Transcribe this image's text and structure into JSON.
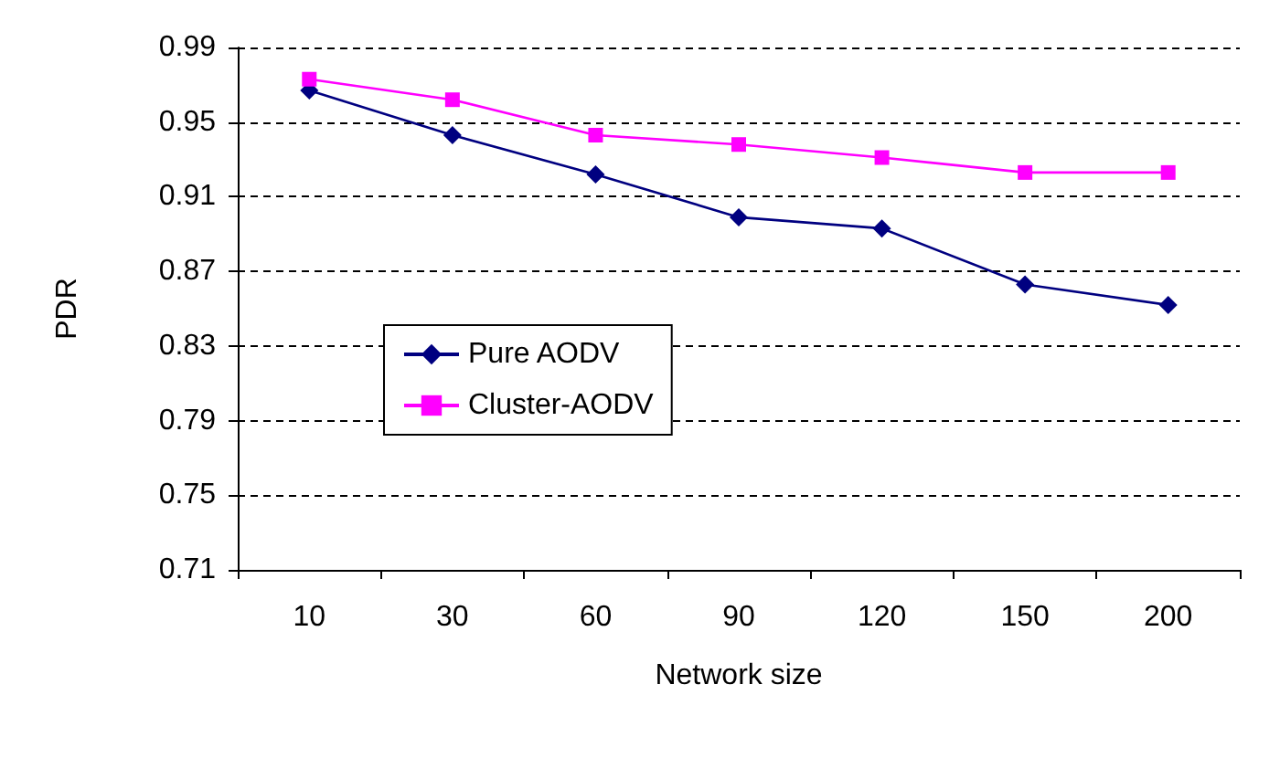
{
  "chart_data": {
    "type": "line",
    "xlabel": "Network size",
    "ylabel": "PDR",
    "categories": [
      "10",
      "30",
      "60",
      "90",
      "120",
      "150",
      "200"
    ],
    "series": [
      {
        "name": "Pure AODV",
        "color": "#000080",
        "marker": "diamond",
        "values": [
          0.967,
          0.943,
          0.922,
          0.899,
          0.893,
          0.863,
          0.852
        ]
      },
      {
        "name": "Cluster-AODV",
        "color": "#ff00ff",
        "marker": "square",
        "values": [
          0.973,
          0.962,
          0.943,
          0.938,
          0.931,
          0.923,
          0.923
        ]
      }
    ],
    "ylim": [
      0.71,
      0.99
    ],
    "yticks": [
      0.71,
      0.75,
      0.79,
      0.83,
      0.87,
      0.91,
      0.95,
      0.99
    ],
    "grid": "y",
    "legend": "left"
  }
}
